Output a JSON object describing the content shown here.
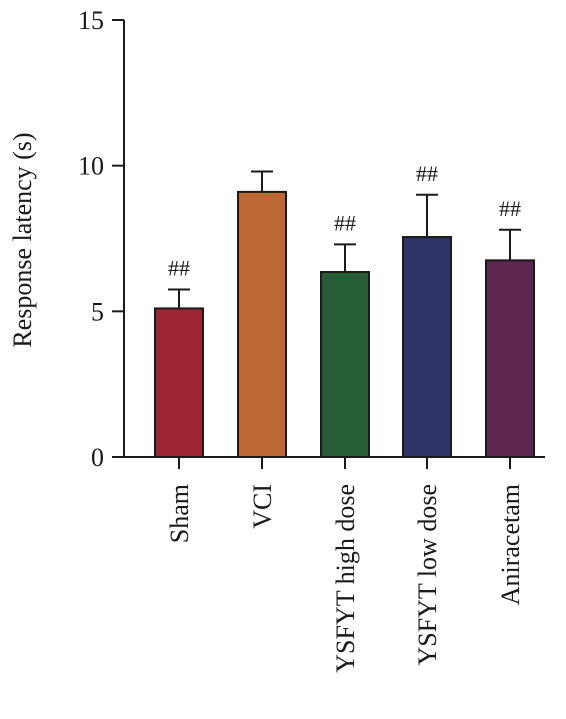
{
  "chart_data": {
    "type": "bar",
    "title": "",
    "xlabel": "",
    "ylabel": "Response latency (s)",
    "ylim": [
      0,
      15
    ],
    "yticks": [
      0,
      5,
      10,
      15
    ],
    "categories": [
      "Sham",
      "VCI",
      "YSFYT high dose",
      "YSFYT low dose",
      "Aniracetam"
    ],
    "values": [
      5.1,
      9.1,
      6.35,
      7.55,
      6.75
    ],
    "errors": [
      0.65,
      0.7,
      0.95,
      1.45,
      1.05
    ],
    "significance": [
      "##",
      "",
      "##",
      "##",
      "##"
    ],
    "colors": [
      "#9b2530",
      "#bd6834",
      "#275e35",
      "#2e3468",
      "#5d2752"
    ],
    "grid": false
  }
}
